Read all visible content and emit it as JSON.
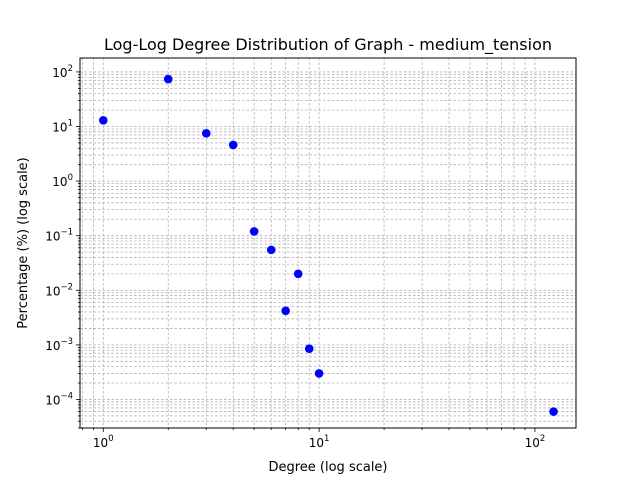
{
  "chart_data": {
    "type": "scatter",
    "title": "Log-Log Degree Distribution of Graph - medium_tension",
    "xlabel": "Degree (log scale)",
    "ylabel": "Percentage (%) (log scale)",
    "xscale": "log",
    "yscale": "log",
    "xlim": [
      0.78,
      155
    ],
    "ylim": [
      3e-05,
      180
    ],
    "grid": true,
    "marker_color": "#0000ff",
    "x_ticks": [
      {
        "base": "10",
        "exp": "0",
        "value": 1
      },
      {
        "base": "10",
        "exp": "1",
        "value": 10
      },
      {
        "base": "10",
        "exp": "2",
        "value": 100
      }
    ],
    "y_ticks": [
      {
        "base": "10",
        "exp": "−4",
        "value": 0.0001
      },
      {
        "base": "10",
        "exp": "−3",
        "value": 0.001
      },
      {
        "base": "10",
        "exp": "−2",
        "value": 0.01
      },
      {
        "base": "10",
        "exp": "−1",
        "value": 0.1
      },
      {
        "base": "10",
        "exp": "0",
        "value": 1
      },
      {
        "base": "10",
        "exp": "1",
        "value": 10
      },
      {
        "base": "10",
        "exp": "2",
        "value": 100
      }
    ],
    "points": [
      {
        "x": 1,
        "y": 13
      },
      {
        "x": 2,
        "y": 74
      },
      {
        "x": 3,
        "y": 7.5
      },
      {
        "x": 4,
        "y": 4.6
      },
      {
        "x": 5,
        "y": 0.12
      },
      {
        "x": 6,
        "y": 0.055
      },
      {
        "x": 7,
        "y": 0.0042
      },
      {
        "x": 8,
        "y": 0.02
      },
      {
        "x": 9,
        "y": 0.00085
      },
      {
        "x": 10,
        "y": 0.0003
      },
      {
        "x": 122,
        "y": 6e-05
      }
    ]
  }
}
